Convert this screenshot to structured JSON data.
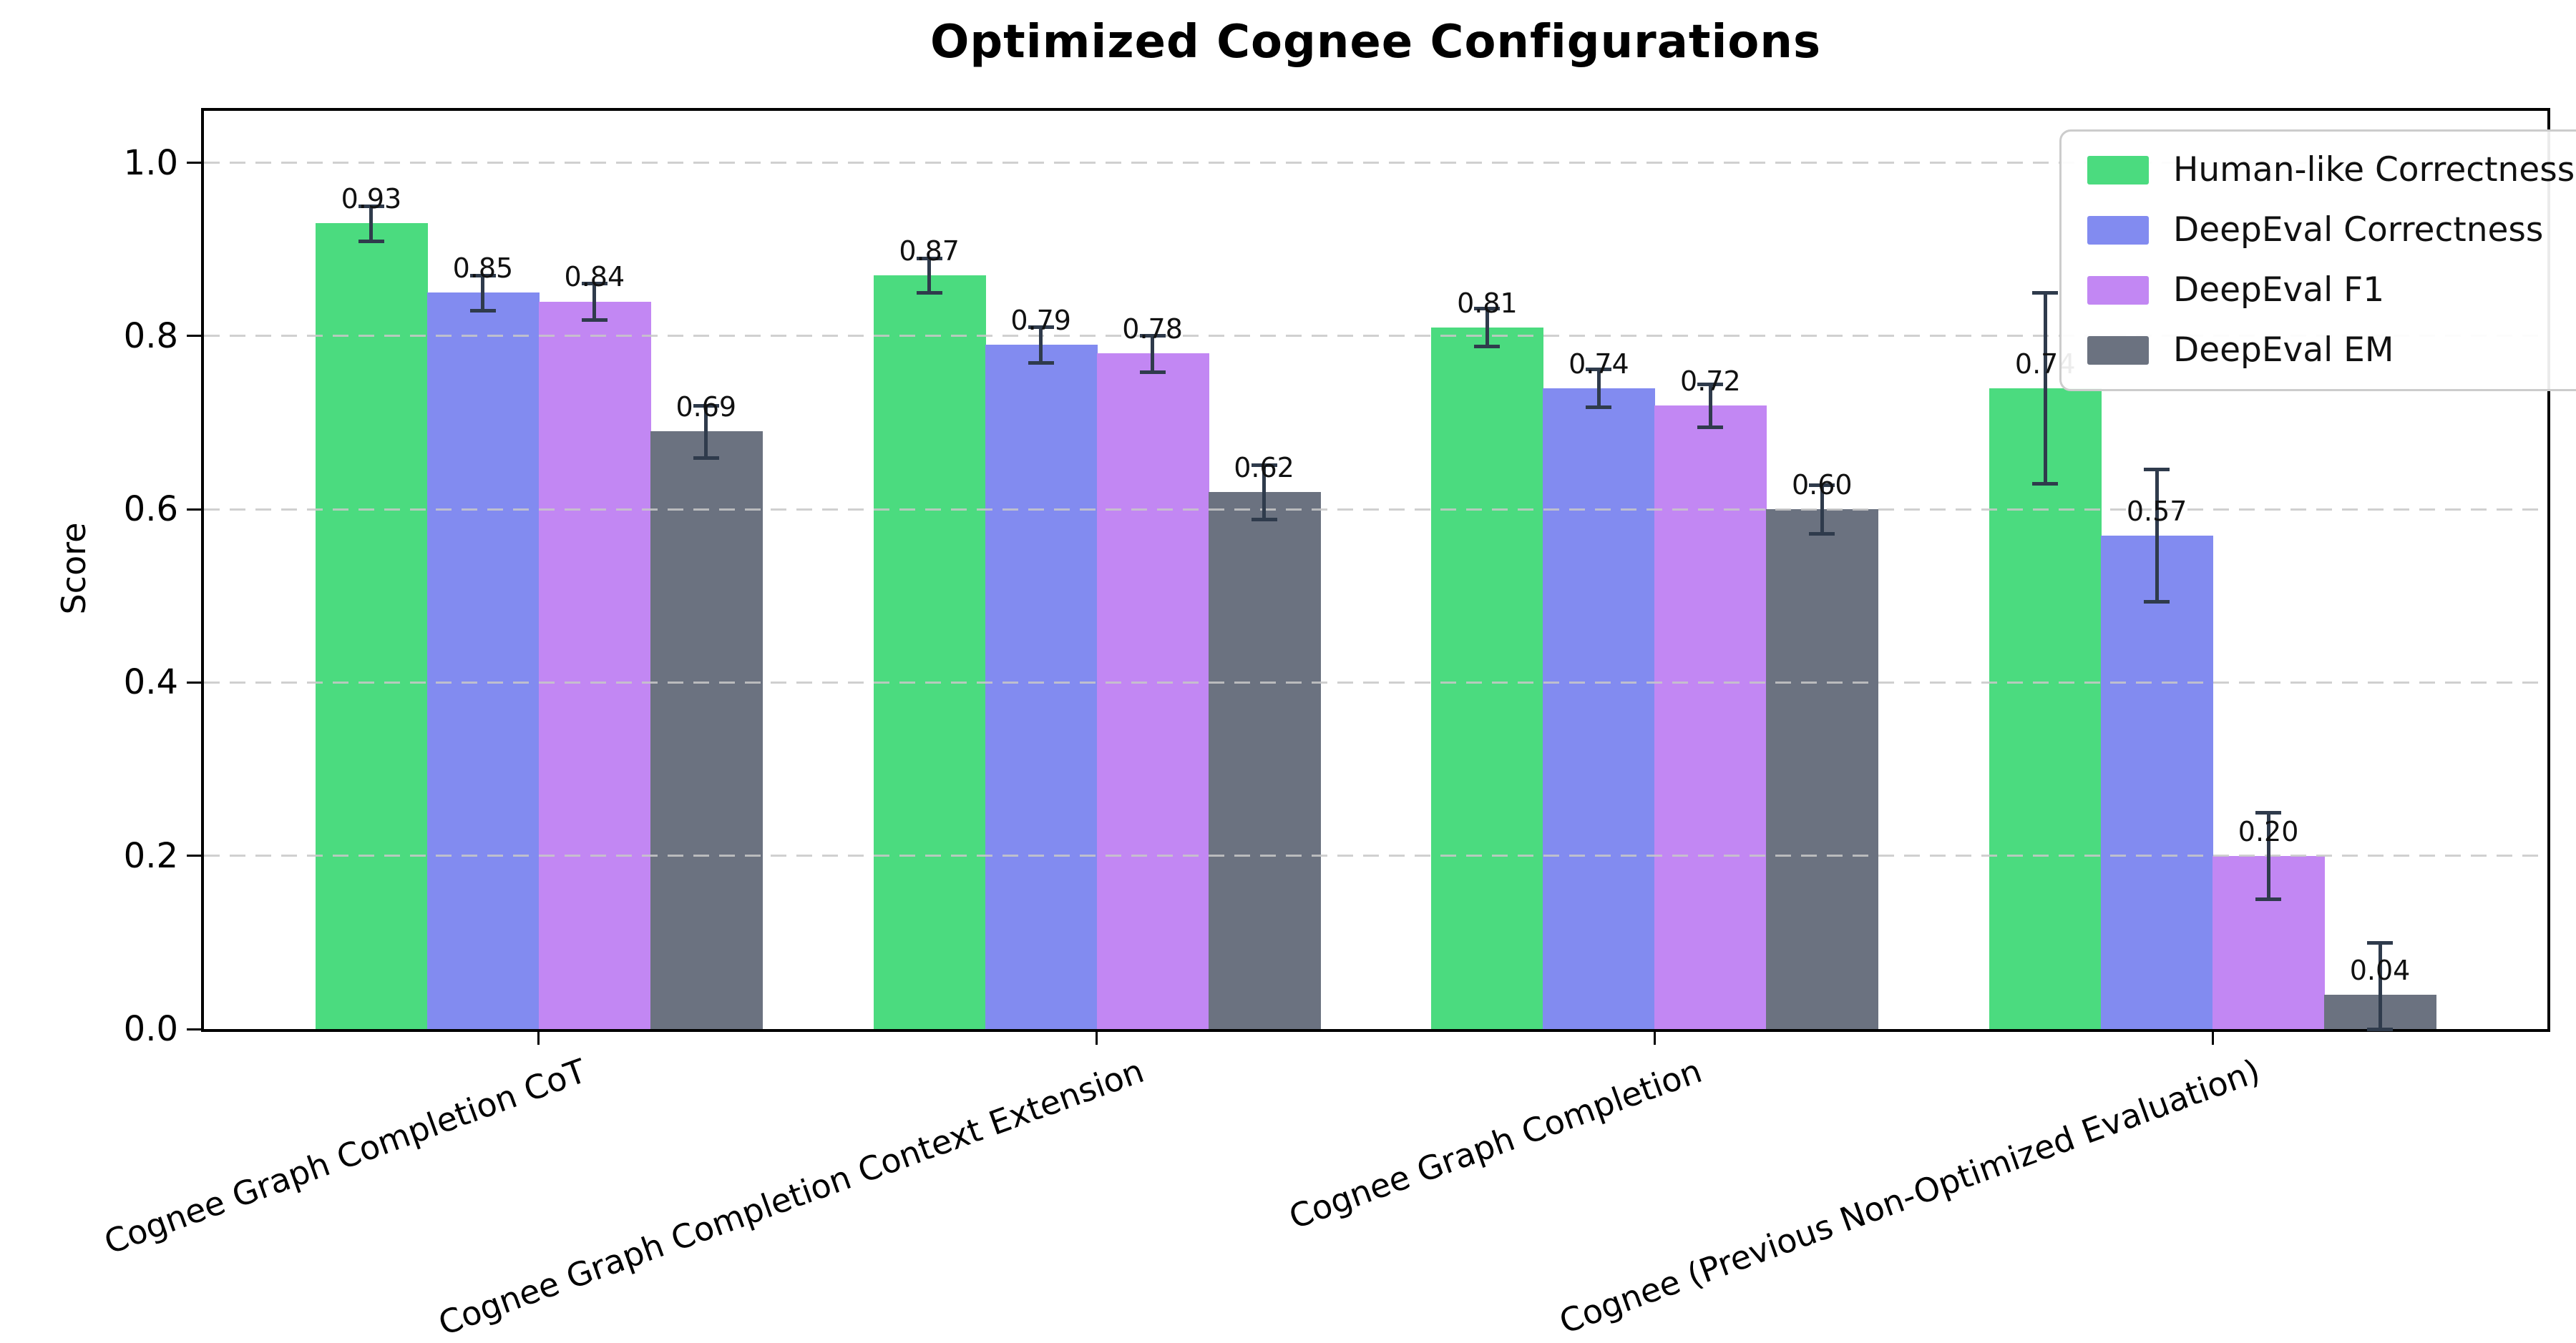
{
  "title": "Optimized Cognee Configurations",
  "axes": {
    "ylabel": "Score",
    "yticks": [
      "0.0",
      "0.2",
      "0.4",
      "0.6",
      "0.8",
      "1.0"
    ]
  },
  "legend": {
    "position": "upper right",
    "entries": [
      "Human-like Correctness",
      "DeepEval Correctness",
      "DeepEval F1",
      "DeepEval EM"
    ]
  },
  "chart_data": {
    "type": "bar",
    "title": "Optimized Cognee Configurations",
    "xlabel": "",
    "ylabel": "Score",
    "ylim": [
      0,
      1.06
    ],
    "yticks": [
      0.0,
      0.2,
      0.4,
      0.6,
      0.8,
      1.0
    ],
    "grid": "horizontal dashed gridlines drawn over bars",
    "legend_position": "upper right",
    "error_bar_color": "#2f3b4c",
    "background_color": "#ffffff",
    "categories": [
      "Cognee Graph Completion CoT",
      "Cognee Graph Completion Context Extension",
      "Cognee Graph Completion",
      "Cognee (Previous Non-Optimized Evaluation)"
    ],
    "series": [
      {
        "name": "Human-like Correctness",
        "color": "#4bdb7f",
        "values": [
          0.93,
          0.87,
          0.81,
          0.74
        ],
        "errors": [
          0.02,
          0.02,
          0.022,
          0.11
        ],
        "labels": [
          "0.93",
          "0.87",
          "0.81",
          "0.74"
        ]
      },
      {
        "name": "DeepEval Correctness",
        "color": "#828bf0",
        "values": [
          0.85,
          0.79,
          0.74,
          0.57
        ],
        "errors": [
          0.02,
          0.021,
          0.022,
          0.076
        ],
        "labels": [
          "0.85",
          "0.79",
          "0.74",
          "0.57"
        ]
      },
      {
        "name": "DeepEval F1",
        "color": "#c287f3",
        "values": [
          0.84,
          0.78,
          0.72,
          0.2
        ],
        "errors": [
          0.021,
          0.021,
          0.025,
          0.05
        ],
        "labels": [
          "0.84",
          "0.78",
          "0.72",
          "0.20"
        ]
      },
      {
        "name": "DeepEval EM",
        "color": "#6b7280",
        "values": [
          0.69,
          0.62,
          0.6,
          0.04
        ],
        "errors": [
          0.03,
          0.031,
          0.028,
          0.06
        ],
        "labels": [
          "0.69",
          "0.62",
          "0.60",
          "0.04"
        ]
      }
    ]
  }
}
